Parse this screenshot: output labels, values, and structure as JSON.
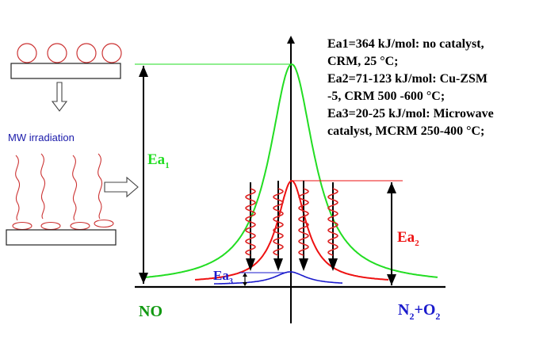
{
  "diagram": {
    "legend_lines": [
      "Ea1=364 kJ/mol: no catalyst,",
      "CRM, 25 °C;",
      "Ea2=71-123 kJ/mol: Cu-ZSM",
      "-5, CRM 500 -600 °C;",
      "Ea3=20-25 kJ/mol: Microwave",
      "catalyst, MCRM 250-400 °C;"
    ],
    "mw_label": "MW irradiation",
    "barrier_labels": {
      "ea1": {
        "main": "Ea",
        "sub": "1"
      },
      "ea2": {
        "main": "Ea",
        "sub": "2"
      },
      "ea3": {
        "main": "Ea",
        "sub": "3"
      }
    },
    "reactant_label": "NO",
    "product_label": {
      "n": "N",
      "n_sub": "2",
      "plus_o": "+O",
      "o_sub": "2"
    },
    "colors": {
      "uncatalyzed": "#22dd22",
      "catalyzed": "#ee1111",
      "microwave": "#1a1acc",
      "reactant": "#119911",
      "product": "#1a1acc",
      "molecule": "#cc3333",
      "mw_text": "#1a1aaa"
    }
  }
}
